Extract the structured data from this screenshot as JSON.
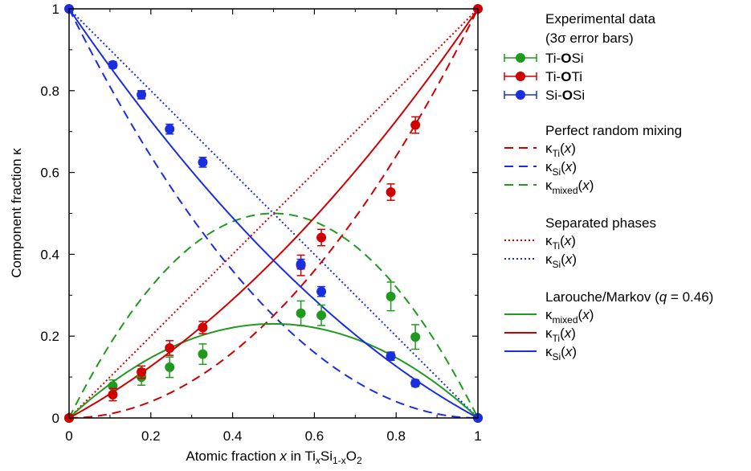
{
  "chart_data": {
    "type": "scatter",
    "xlabel": "Atomic fraction x in TixSi1-xO2",
    "ylabel": "Component fraction κ",
    "xlim": [
      0,
      1
    ],
    "ylim": [
      0,
      1
    ],
    "x_ticks": [
      "0",
      "0.2",
      "0.4",
      "0.6",
      "0.8",
      "1"
    ],
    "y_ticks": [
      "0",
      "0.2",
      "0.4",
      "0.6",
      "0.8",
      "1"
    ],
    "grid": false,
    "legend_position": "right, outside plot",
    "experimental": {
      "header_line1": "Experimental data",
      "header_line2": "(3σ error bars)",
      "series": [
        {
          "name": "Ti-O-Si",
          "color": "#1f9a1f",
          "points": [
            {
              "x": 0.0,
              "y": 0.0,
              "err": 0.0
            },
            {
              "x": 0.107,
              "y": 0.078,
              "err": 0.015
            },
            {
              "x": 0.177,
              "y": 0.1,
              "err": 0.02
            },
            {
              "x": 0.246,
              "y": 0.124,
              "err": 0.025
            },
            {
              "x": 0.327,
              "y": 0.156,
              "err": 0.025
            },
            {
              "x": 0.567,
              "y": 0.256,
              "err": 0.03
            },
            {
              "x": 0.617,
              "y": 0.251,
              "err": 0.025
            },
            {
              "x": 0.787,
              "y": 0.297,
              "err": 0.035
            },
            {
              "x": 0.847,
              "y": 0.198,
              "err": 0.03
            },
            {
              "x": 1.0,
              "y": 0.0,
              "err": 0.0
            }
          ]
        },
        {
          "name": "Ti-O-Ti",
          "color": "#d00000",
          "points": [
            {
              "x": 0.0,
              "y": 0.0,
              "err": 0.0
            },
            {
              "x": 0.107,
              "y": 0.057,
              "err": 0.015
            },
            {
              "x": 0.177,
              "y": 0.112,
              "err": 0.015
            },
            {
              "x": 0.246,
              "y": 0.171,
              "err": 0.018
            },
            {
              "x": 0.327,
              "y": 0.221,
              "err": 0.015
            },
            {
              "x": 0.567,
              "y": 0.373,
              "err": 0.025
            },
            {
              "x": 0.617,
              "y": 0.441,
              "err": 0.02
            },
            {
              "x": 0.787,
              "y": 0.552,
              "err": 0.02
            },
            {
              "x": 0.847,
              "y": 0.716,
              "err": 0.02
            },
            {
              "x": 1.0,
              "y": 1.0,
              "err": 0.0
            }
          ]
        },
        {
          "name": "Si-O-Si",
          "color": "#1a2ee0",
          "points": [
            {
              "x": 0.0,
              "y": 1.0,
              "err": 0.0
            },
            {
              "x": 0.107,
              "y": 0.863,
              "err": 0.008
            },
            {
              "x": 0.177,
              "y": 0.79,
              "err": 0.01
            },
            {
              "x": 0.246,
              "y": 0.706,
              "err": 0.012
            },
            {
              "x": 0.327,
              "y": 0.625,
              "err": 0.012
            },
            {
              "x": 0.567,
              "y": 0.376,
              "err": 0.012
            },
            {
              "x": 0.617,
              "y": 0.309,
              "err": 0.012
            },
            {
              "x": 0.787,
              "y": 0.151,
              "err": 0.01
            },
            {
              "x": 0.847,
              "y": 0.085,
              "err": 0.008
            },
            {
              "x": 1.0,
              "y": 0.0,
              "err": 0.0
            }
          ]
        }
      ]
    },
    "models": [
      {
        "group": "Perfect random mixing",
        "curves": [
          {
            "id": "prm-ti",
            "label_sub": "Ti",
            "style": "dashed",
            "color": "#d00000",
            "formula": "x^2"
          },
          {
            "id": "prm-si",
            "label_sub": "Si",
            "style": "dashed",
            "color": "#1a2ee0",
            "formula": "(1-x)^2"
          },
          {
            "id": "prm-mixed",
            "label_sub": "mixed",
            "style": "dashed",
            "color": "#1f9a1f",
            "formula": "2x(1-x)"
          }
        ]
      },
      {
        "group": "Separated phases",
        "curves": [
          {
            "id": "sep-ti",
            "label_sub": "Ti",
            "style": "dotted",
            "color": "#d00000",
            "formula": "x"
          },
          {
            "id": "sep-si",
            "label_sub": "Si",
            "style": "dotted",
            "color": "#1a2ee0",
            "formula": "1-x"
          }
        ]
      },
      {
        "group": "Larouche/Markov (q = 0.46)",
        "q": 0.46,
        "curves": [
          {
            "id": "lm-mixed",
            "label_sub": "mixed",
            "style": "solid",
            "color": "#1f9a1f",
            "formula": "2q x(1-x)"
          },
          {
            "id": "lm-ti",
            "label_sub": "Ti",
            "style": "solid",
            "color": "#d00000",
            "formula": "x - q x(1-x)"
          },
          {
            "id": "lm-si",
            "label_sub": "Si",
            "style": "solid",
            "color": "#1a2ee0",
            "formula": "(1-x) - q x(1-x)"
          }
        ]
      }
    ],
    "legend_text": {
      "kappa": "κ",
      "open_paren": "(",
      "x": "x",
      "close_paren": ")",
      "q_part1": "Larouche/Markov (",
      "q_var": "q",
      "q_part2": " = 0.46)",
      "bond_prefix": [
        "Ti-",
        "Ti-",
        "Si-"
      ],
      "bond_O": "O",
      "bond_suffix": [
        "Si",
        "Ti",
        "Si"
      ]
    },
    "xlabel_parts": {
      "pre": "Atomic fraction ",
      "x": "x",
      "in": " in Ti",
      "sub1": "x",
      "si": "Si",
      "sub2": "1-x",
      "o": "O",
      "sub3": "2"
    }
  }
}
